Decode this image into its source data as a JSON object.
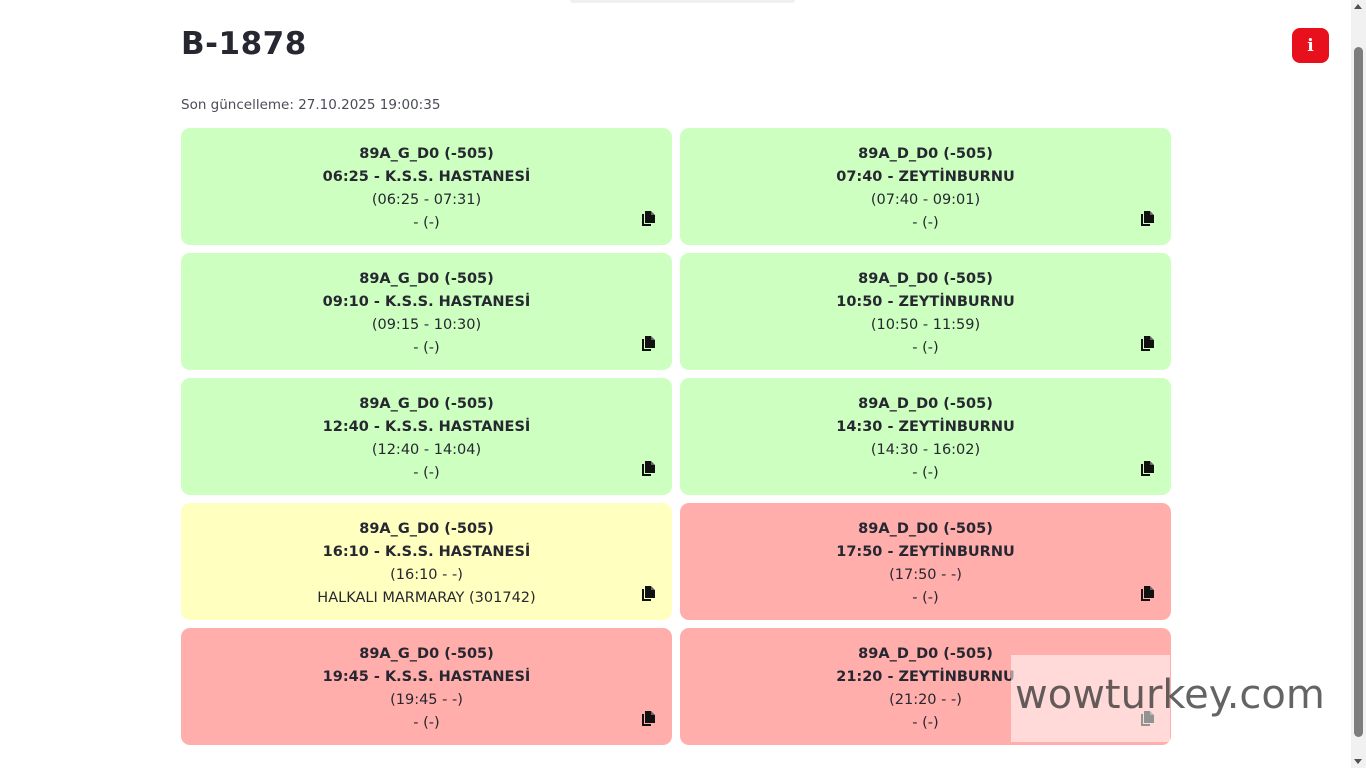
{
  "page": {
    "title": "B-1878",
    "last_updated": "Son güncelleme: 27.10.2025 19:00:35",
    "info_button_label": "i"
  },
  "trips": [
    {
      "route": "89A_G_D0 (-505)",
      "departure": "06:25 - K.S.S. HASTANESİ",
      "window": "(06:25 - 07:31)",
      "note": "- (-)",
      "status": "green"
    },
    {
      "route": "89A_D_D0 (-505)",
      "departure": "07:40 - ZEYTİNBURNU",
      "window": "(07:40 - 09:01)",
      "note": "- (-)",
      "status": "green"
    },
    {
      "route": "89A_G_D0 (-505)",
      "departure": "09:10 - K.S.S. HASTANESİ",
      "window": "(09:15 - 10:30)",
      "note": "- (-)",
      "status": "green"
    },
    {
      "route": "89A_D_D0 (-505)",
      "departure": "10:50 - ZEYTİNBURNU",
      "window": "(10:50 - 11:59)",
      "note": "- (-)",
      "status": "green"
    },
    {
      "route": "89A_G_D0 (-505)",
      "departure": "12:40 - K.S.S. HASTANESİ",
      "window": "(12:40 - 14:04)",
      "note": "- (-)",
      "status": "green"
    },
    {
      "route": "89A_D_D0 (-505)",
      "departure": "14:30 - ZEYTİNBURNU",
      "window": "(14:30 - 16:02)",
      "note": "- (-)",
      "status": "green"
    },
    {
      "route": "89A_G_D0 (-505)",
      "departure": "16:10 - K.S.S. HASTANESİ",
      "window": "(16:10 - -)",
      "note": "HALKALI MARMARAY (301742)",
      "status": "yellow"
    },
    {
      "route": "89A_D_D0 (-505)",
      "departure": "17:50 - ZEYTİNBURNU",
      "window": "(17:50 - -)",
      "note": "- (-)",
      "status": "red"
    },
    {
      "route": "89A_G_D0 (-505)",
      "departure": "19:45 - K.S.S. HASTANESİ",
      "window": "(19:45 - -)",
      "note": "- (-)",
      "status": "red"
    },
    {
      "route": "89A_D_D0 (-505)",
      "departure": "21:20 - ZEYTİNBURNU",
      "window": "(21:20 - -)",
      "note": "- (-)",
      "status": "red"
    }
  ],
  "icons": {
    "copy": "copy-icon",
    "info": "info-icon"
  },
  "colors": {
    "green": "#ccffc0",
    "yellow": "#ffffbf",
    "red": "#ffaeac",
    "info_button": "#e8101c"
  },
  "watermark": "wowturkey.com"
}
